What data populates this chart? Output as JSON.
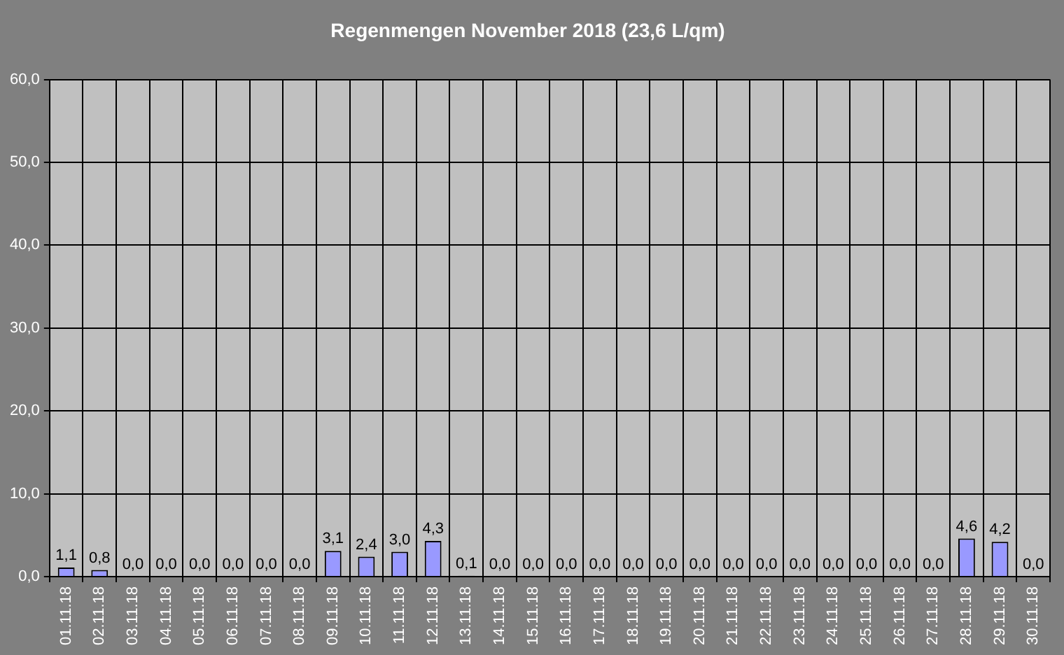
{
  "chart_data": {
    "type": "bar",
    "title": "Regenmengen November 2018 (23,6 L/qm)",
    "categories": [
      "01.11.18",
      "02.11.18",
      "03.11.18",
      "04.11.18",
      "05.11.18",
      "06.11.18",
      "07.11.18",
      "08.11.18",
      "09.11.18",
      "10.11.18",
      "11.11.18",
      "12.11.18",
      "13.11.18",
      "14.11.18",
      "15.11.18",
      "16.11.18",
      "17.11.18",
      "18.11.18",
      "19.11.18",
      "20.11.18",
      "21.11.18",
      "22.11.18",
      "23.11.18",
      "24.11.18",
      "25.11.18",
      "26.11.18",
      "27.11.18",
      "28.11.18",
      "29.11.18",
      "30.11.18"
    ],
    "values": [
      1.1,
      0.8,
      0,
      0,
      0,
      0,
      0,
      0,
      3.1,
      2.4,
      3.0,
      4.3,
      0.1,
      0,
      0,
      0,
      0,
      0,
      0,
      0,
      0,
      0,
      0,
      0,
      0,
      0,
      0,
      4.6,
      4.2,
      0
    ],
    "value_labels": [
      "1,1",
      "0,8",
      "0,0",
      "0,0",
      "0,0",
      "0,0",
      "0,0",
      "0,0",
      "3,1",
      "2,4",
      "3,0",
      "4,3",
      "0,1",
      "0,0",
      "0,0",
      "0,0",
      "0,0",
      "0,0",
      "0,0",
      "0,0",
      "0,0",
      "0,0",
      "0,0",
      "0,0",
      "0,0",
      "0,0",
      "0,0",
      "4,6",
      "4,2",
      "0,0"
    ],
    "color": "#9999ff",
    "ylim": [
      0,
      60
    ],
    "yticks": [
      {
        "value": 0,
        "label": "0,0"
      },
      {
        "value": 10,
        "label": "10,0"
      },
      {
        "value": 20,
        "label": "20,0"
      },
      {
        "value": 30,
        "label": "30,0"
      },
      {
        "value": 40,
        "label": "40,0"
      },
      {
        "value": 50,
        "label": "50,0"
      },
      {
        "value": 60,
        "label": "60,0"
      }
    ],
    "grid": true
  }
}
